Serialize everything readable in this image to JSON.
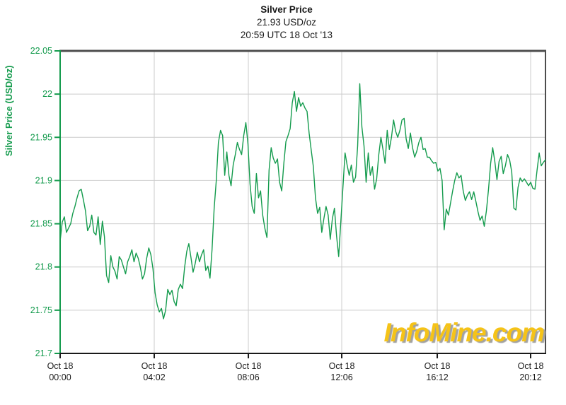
{
  "header": {
    "title": "Silver Price",
    "subtitle_price": "21.93 USD/oz",
    "subtitle_time": "20:59 UTC 18 Oct '13"
  },
  "watermark": {
    "text": "InfoMine.com",
    "color": "#F5C318",
    "shadow_color": "#A2A2A2"
  },
  "colors": {
    "accent_green": "#149B4D",
    "grid": "#CCCCCC",
    "frame_dark": "#4D4D4D",
    "axis_black": "#1A1A1A",
    "background": "#FFFFFF"
  },
  "chart_data": {
    "type": "line",
    "title": "Silver Price",
    "current_price_label": "21.93 USD/oz",
    "timestamp_label": "20:59 UTC 18 Oct '13",
    "ylabel": "Silver Price (USD/oz)",
    "xlabel": "",
    "ylim": [
      21.7,
      22.05
    ],
    "grid": true,
    "legend_position": "none",
    "y_ticks": [
      22.05,
      22,
      21.95,
      21.9,
      21.85,
      21.8,
      21.75,
      21.7
    ],
    "y_tick_labels": [
      "22.05",
      "22",
      "21.95",
      "21.9",
      "21.85",
      "21.8",
      "21.75",
      "21.7"
    ],
    "x_ticks": [
      {
        "pos": 0.0,
        "date": "Oct 18",
        "time": "00:00"
      },
      {
        "pos": 0.1939,
        "date": "Oct 18",
        "time": "04:02"
      },
      {
        "pos": 0.3878,
        "date": "Oct 18",
        "time": "08:06"
      },
      {
        "pos": 0.5802,
        "date": "Oct 18",
        "time": "12:06"
      },
      {
        "pos": 0.777,
        "date": "Oct 18",
        "time": "16:12"
      },
      {
        "pos": 0.9694,
        "date": "Oct 18",
        "time": "20:12"
      }
    ],
    "x_range": {
      "start": "Oct 18 00:00 UTC",
      "end": "Oct 18 20:59 UTC"
    },
    "series": [
      {
        "name": "silver-price-usd-oz",
        "color": "#149B4D",
        "values": [
          21.83,
          21.852,
          21.858,
          21.84,
          21.845,
          21.85,
          21.862,
          21.87,
          21.88,
          21.888,
          21.89,
          21.878,
          21.865,
          21.842,
          21.847,
          21.86,
          21.84,
          21.837,
          21.858,
          21.826,
          21.853,
          21.835,
          21.79,
          21.782,
          21.813,
          21.8,
          21.795,
          21.786,
          21.812,
          21.808,
          21.8,
          21.792,
          21.806,
          21.812,
          21.82,
          21.806,
          21.816,
          21.81,
          21.8,
          21.786,
          21.792,
          21.81,
          21.822,
          21.814,
          21.798,
          21.77,
          21.756,
          21.748,
          21.752,
          21.74,
          21.75,
          21.774,
          21.768,
          21.773,
          21.76,
          21.755,
          21.774,
          21.78,
          21.775,
          21.8,
          21.818,
          21.827,
          21.811,
          21.794,
          21.804,
          21.817,
          21.806,
          21.814,
          21.82,
          21.796,
          21.801,
          21.787,
          21.82,
          21.868,
          21.9,
          21.944,
          21.958,
          21.952,
          21.906,
          21.933,
          21.906,
          21.894,
          21.918,
          21.93,
          21.944,
          21.936,
          21.93,
          21.952,
          21.967,
          21.942,
          21.896,
          21.87,
          21.862,
          21.908,
          21.88,
          21.888,
          21.86,
          21.845,
          21.834,
          21.912,
          21.938,
          21.926,
          21.92,
          21.925,
          21.898,
          21.888,
          21.92,
          21.945,
          21.952,
          21.96,
          21.99,
          22.003,
          21.98,
          21.996,
          21.986,
          21.99,
          21.984,
          21.98,
          21.955,
          21.935,
          21.916,
          21.88,
          21.862,
          21.869,
          21.84,
          21.856,
          21.87,
          21.86,
          21.832,
          21.856,
          21.868,
          21.836,
          21.812,
          21.852,
          21.892,
          21.932,
          21.918,
          21.906,
          21.918,
          21.898,
          21.904,
          21.94,
          22.012,
          21.962,
          21.94,
          21.898,
          21.932,
          21.906,
          21.916,
          21.89,
          21.902,
          21.93,
          21.95,
          21.936,
          21.92,
          21.958,
          21.936,
          21.95,
          21.97,
          21.957,
          21.95,
          21.958,
          21.97,
          21.972,
          21.948,
          21.937,
          21.955,
          21.938,
          21.927,
          21.934,
          21.944,
          21.95,
          21.936,
          21.937,
          21.927,
          21.927,
          21.923,
          21.92,
          21.921,
          21.911,
          21.914,
          21.9,
          21.843,
          21.867,
          21.86,
          21.874,
          21.888,
          21.9,
          21.909,
          21.903,
          21.906,
          21.888,
          21.877,
          21.883,
          21.887,
          21.878,
          21.887,
          21.876,
          21.864,
          21.854,
          21.859,
          21.847,
          21.865,
          21.89,
          21.92,
          21.938,
          21.922,
          21.901,
          21.922,
          21.928,
          21.908,
          21.917,
          21.93,
          21.924,
          21.91,
          21.868,
          21.866,
          21.892,
          21.903,
          21.899,
          21.902,
          21.898,
          21.894,
          21.898,
          21.891,
          21.89,
          21.912,
          21.932,
          21.917,
          21.921,
          21.924
        ]
      }
    ]
  }
}
